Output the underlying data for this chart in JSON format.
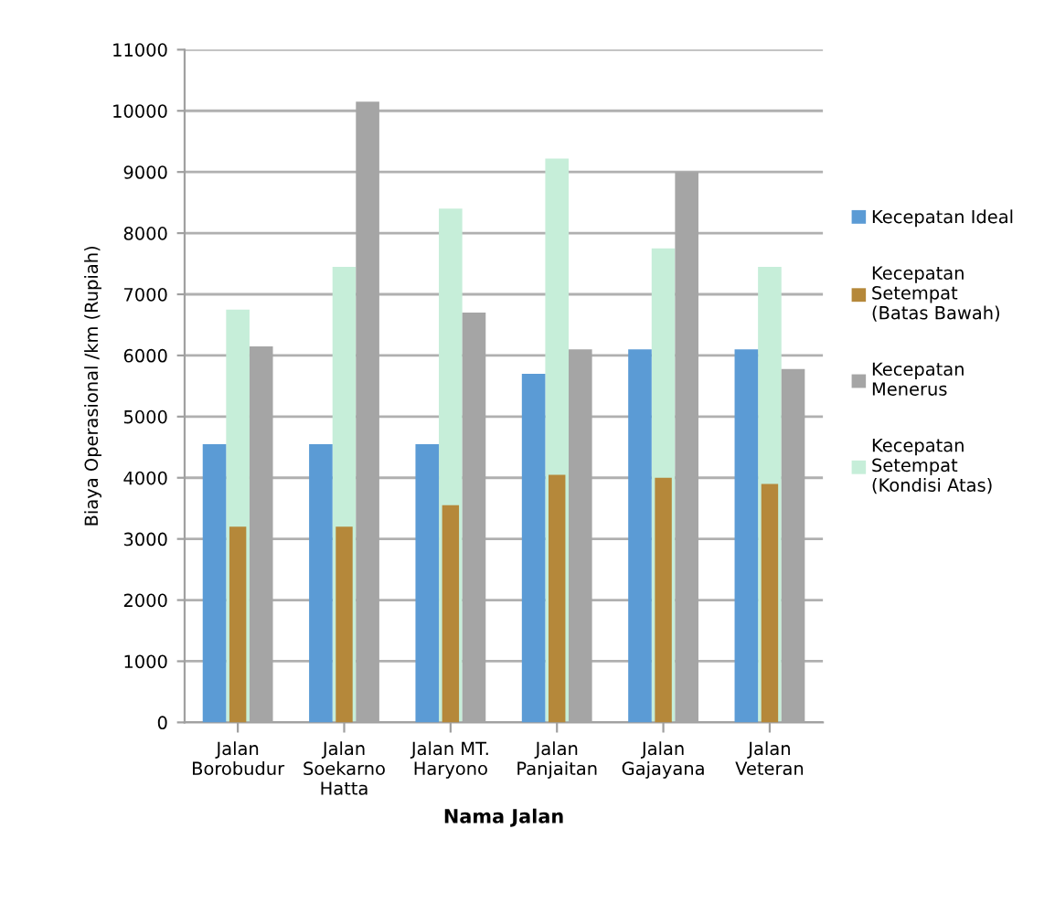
{
  "chart_data": {
    "type": "bar",
    "xlabel": "Nama Jalan",
    "ylabel": "Biaya Operasional /km (Rupiah)",
    "categories": [
      "Jalan\nBorobudur",
      "Jalan\nSoekarno\nHatta",
      "Jalan MT.\nHaryono",
      "Jalan\nPanjaitan",
      "Jalan\nGajayana",
      "Jalan\nVeteran"
    ],
    "series": [
      {
        "name": "Kecepatan Ideal",
        "color": "#5b9bd5",
        "values": [
          4550,
          4550,
          4550,
          5700,
          6100,
          6100
        ]
      },
      {
        "name": "Kecepatan\nSetempat\n(Batas Bawah)",
        "color": "#b5883a",
        "values": [
          3200,
          3200,
          3550,
          4050,
          4000,
          3900
        ]
      },
      {
        "name": "Kecepatan\nMenerus",
        "color": "#a5a5a5",
        "values": [
          6150,
          10150,
          6700,
          6100,
          9000,
          5780
        ]
      },
      {
        "name": "Kecepatan\nSetempat\n(Kondisi Atas)",
        "color": "#c6eed9",
        "values": [
          6750,
          7450,
          8400,
          9220,
          7750,
          7450
        ]
      }
    ],
    "ylim": [
      0,
      11000
    ],
    "yticks": [
      0,
      1000,
      2000,
      3000,
      4000,
      5000,
      6000,
      7000,
      8000,
      9000,
      10000,
      11000
    ],
    "grid": "y",
    "legend": "right"
  }
}
